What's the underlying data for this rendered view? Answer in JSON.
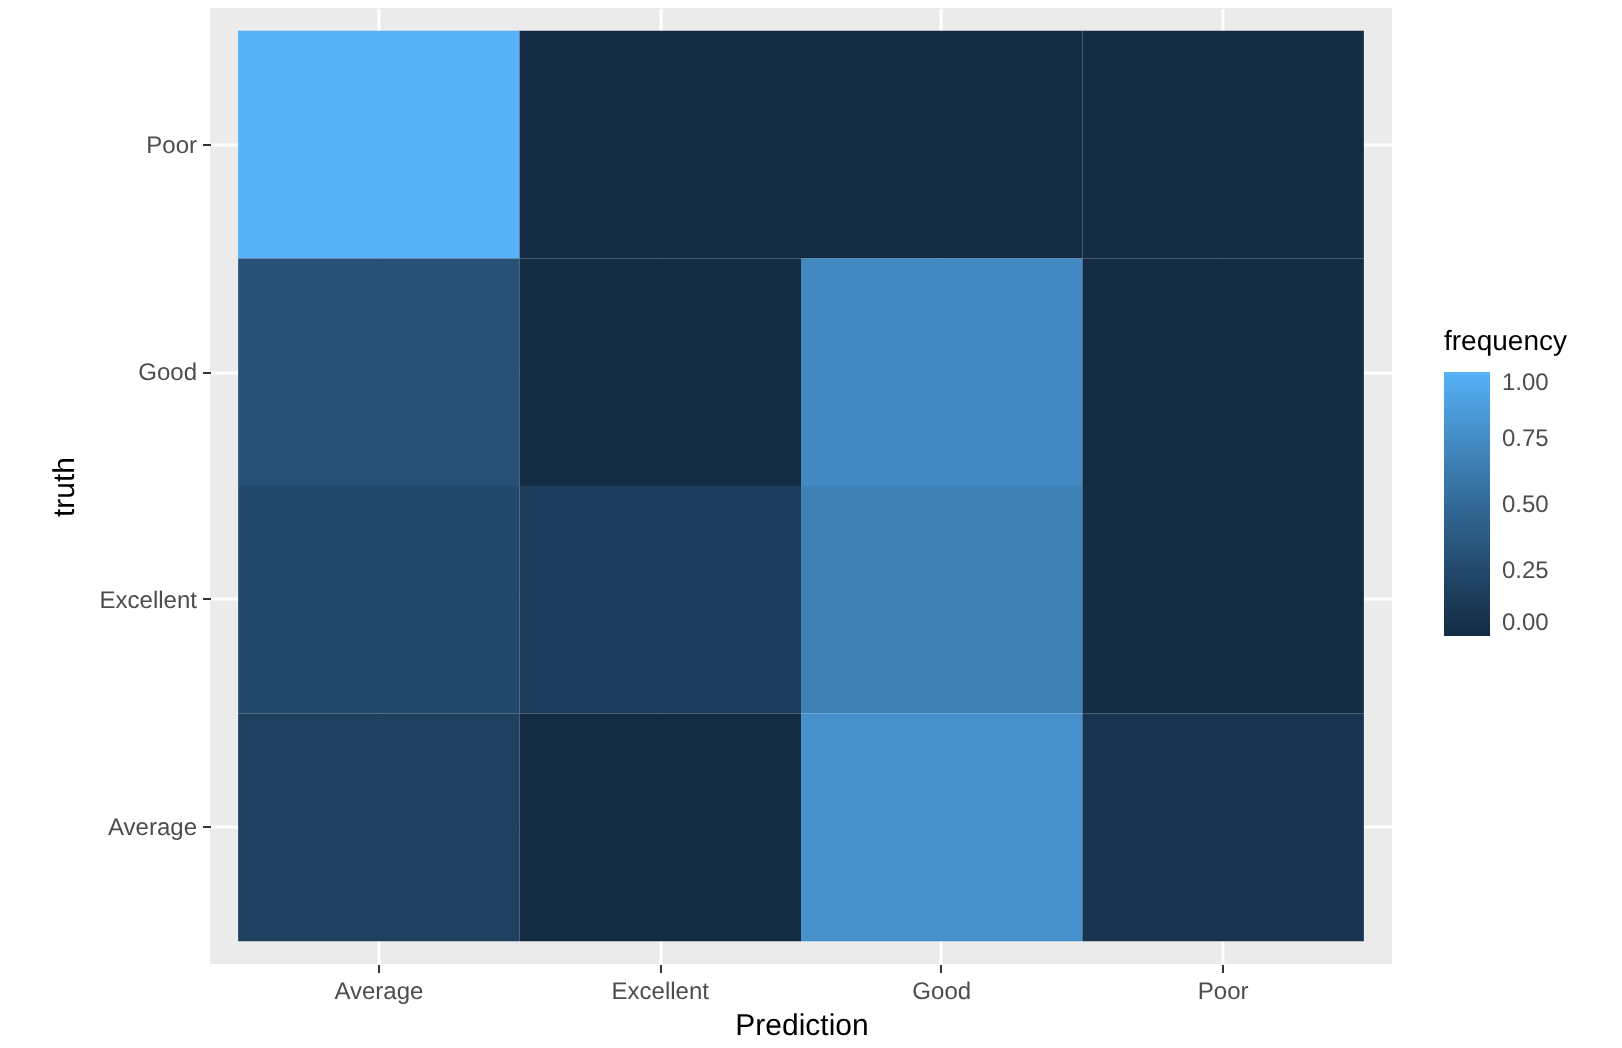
{
  "chart_data": {
    "type": "heatmap",
    "xlabel": "Prediction",
    "ylabel": "truth",
    "legend_title": "frequency",
    "categories": [
      "Average",
      "Excellent",
      "Good",
      "Poor"
    ],
    "y_categories": [
      "Poor",
      "Good",
      "Excellent",
      "Average"
    ],
    "cells": [
      [
        1.0,
        0,
        0,
        0
      ],
      [
        0.3,
        0,
        0.72,
        0
      ],
      [
        0.25,
        0.15,
        0.67,
        0
      ],
      [
        0.18,
        0,
        0.78,
        0.08
      ]
    ],
    "clim": [
      0,
      1
    ],
    "cticks": [
      {
        "value": 0,
        "label": "0.00"
      },
      {
        "value": 0.25,
        "label": "0.25"
      },
      {
        "value": 0.5,
        "label": "0.50"
      },
      {
        "value": 0.75,
        "label": "0.75"
      },
      {
        "value": 1,
        "label": "1.00"
      }
    ],
    "grid": true
  }
}
